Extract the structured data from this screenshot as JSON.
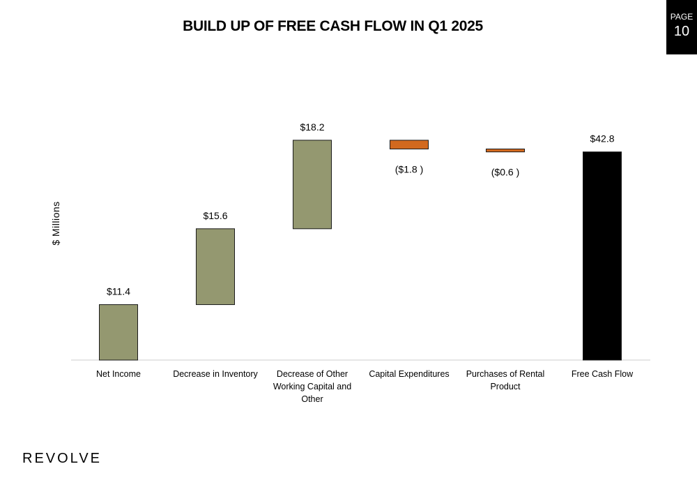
{
  "slide": {
    "title": "BUILD UP OF FREE CASH FLOW IN Q1 2025",
    "page_label": "PAGE",
    "page_number": "10",
    "logo": "REVOLVE"
  },
  "colors": {
    "increase": "#949870",
    "decrease": "#d2691e",
    "total": "#000000",
    "axis": "#cccccc"
  },
  "chart_data": {
    "type": "bar",
    "subtype": "waterfall",
    "title": "BUILD UP OF FREE CASH FLOW IN Q1 2025",
    "ylabel": "$ Millions",
    "xlabel": "",
    "ylim": [
      0,
      60
    ],
    "grid": false,
    "categories": [
      "Net Income",
      "Decrease in Inventory",
      "Decrease of Other Working Capital and Other",
      "Capital Expenditures",
      "Purchases of Rental Product",
      "Free Cash Flow"
    ],
    "category_lines": [
      [
        "Net Income"
      ],
      [
        "Decrease in Inventory"
      ],
      [
        "Decrease of Other",
        "Working Capital and",
        "Other"
      ],
      [
        "Capital Expenditures"
      ],
      [
        "Purchases of Rental",
        "Product"
      ],
      [
        "Free Cash Flow"
      ]
    ],
    "values": [
      11.4,
      15.6,
      18.2,
      -1.8,
      -0.6,
      42.8
    ],
    "kinds": [
      "increase",
      "increase",
      "increase",
      "decrease",
      "decrease",
      "total"
    ],
    "data_labels": [
      "$11.4",
      "$15.6",
      "$18.2",
      "($1.8 )",
      "($0.6 )",
      "$42.8"
    ]
  }
}
